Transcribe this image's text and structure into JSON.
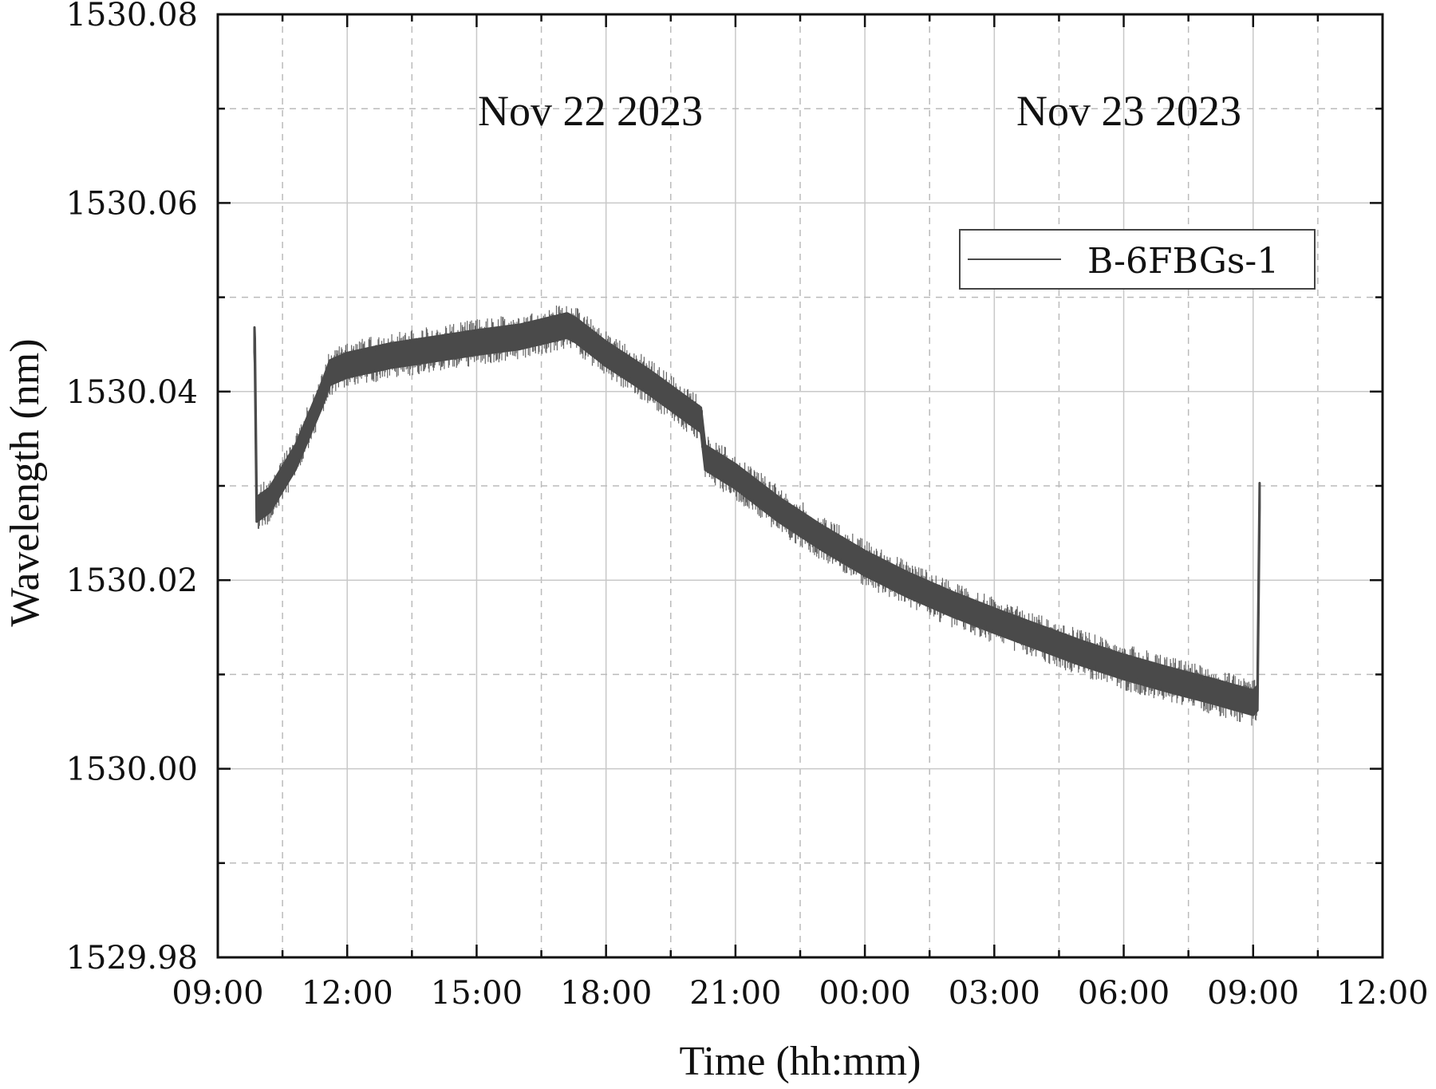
{
  "chart_data": {
    "type": "line",
    "title": "",
    "xlabel": "Time (hh:mm)",
    "ylabel": "Wavelength (nm)",
    "x_tick_labels": [
      "09:00",
      "12:00",
      "15:00",
      "18:00",
      "21:00",
      "00:00",
      "03:00",
      "06:00",
      "09:00",
      "12:00"
    ],
    "x_ticks_hours": [
      0,
      3,
      6,
      9,
      12,
      15,
      18,
      21,
      24,
      27
    ],
    "xlim_hours_from_nov22_0900": [
      0,
      27
    ],
    "y_tick_labels": [
      "1529.98",
      "1530.00",
      "1530.02",
      "1530.04",
      "1530.06",
      "1530.08"
    ],
    "y_ticks": [
      1529.98,
      1530.0,
      1530.02,
      1530.04,
      1530.06,
      1530.08
    ],
    "ylim": [
      1529.98,
      1530.08
    ],
    "grid": true,
    "legend": {
      "placement": "top-right",
      "entries": [
        "B-6FBGs-1"
      ]
    },
    "annotations": [
      {
        "text": "Nov 22 2023",
        "x_hours": 5.8,
        "y": 1530.0695
      },
      {
        "text": "Nov 23 2023",
        "x_hours": 18.3,
        "y": 1530.0695
      }
    ],
    "series": [
      {
        "name": "B-6FBGs-1",
        "color": "#4a4a4a",
        "band_halfwidth_nm": 0.0013,
        "x_hours": [
          0.85,
          0.86,
          0.9,
          1.2,
          1.8,
          2.4,
          2.6,
          3.0,
          4.0,
          5.0,
          6.0,
          7.0,
          8.1,
          8.3,
          9.0,
          10.0,
          11.2,
          11.3,
          12.0,
          13.0,
          14.0,
          15.0,
          16.0,
          17.0,
          18.0,
          19.0,
          20.0,
          21.0,
          22.0,
          23.0,
          24.0,
          24.1,
          24.15
        ],
        "y": [
          1530.0455,
          1530.0443,
          1530.0275,
          1530.0285,
          1530.033,
          1530.0395,
          1530.042,
          1530.0428,
          1530.0438,
          1530.0445,
          1530.0452,
          1530.0458,
          1530.047,
          1530.0465,
          1530.044,
          1530.041,
          1530.037,
          1530.033,
          1530.031,
          1530.0275,
          1530.0245,
          1530.0218,
          1530.0195,
          1530.0175,
          1530.0157,
          1530.014,
          1530.0123,
          1530.0108,
          1530.0095,
          1530.0083,
          1530.007,
          1530.0075,
          1530.029
        ]
      }
    ]
  }
}
